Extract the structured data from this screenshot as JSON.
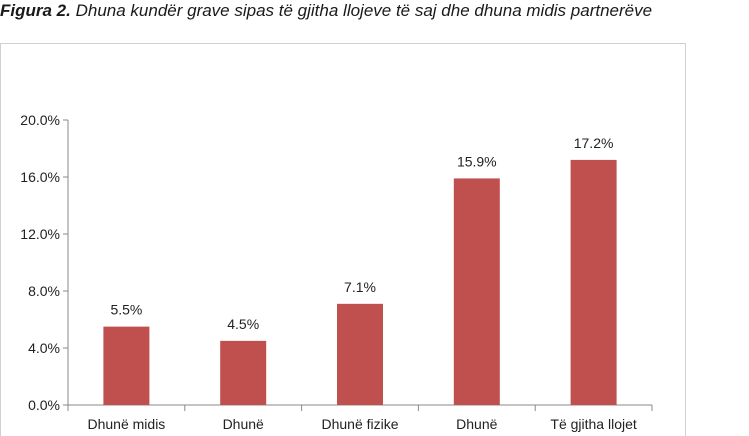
{
  "caption": {
    "lead": "Figura 2.",
    "rest": "Dhuna kundër grave sipas të gjitha llojeve të saj dhe dhuna midis partnerëve"
  },
  "chart_data": {
    "type": "bar",
    "categories": [
      "Dhunë midis",
      "Dhunë",
      "Dhunë fizike",
      "Dhunë",
      "Të gjitha llojet"
    ],
    "values": [
      5.5,
      4.5,
      7.1,
      15.9,
      17.2
    ],
    "data_labels": [
      "5.5%",
      "4.5%",
      "7.1%",
      "15.9%",
      "17.2%"
    ],
    "y_ticks": [
      "0.0%",
      "4.0%",
      "8.0%",
      "12.0%",
      "16.0%",
      "20.0%"
    ],
    "ylim": [
      0,
      20
    ],
    "bar_color": "#c0504d",
    "grid": false,
    "legend": "none"
  }
}
